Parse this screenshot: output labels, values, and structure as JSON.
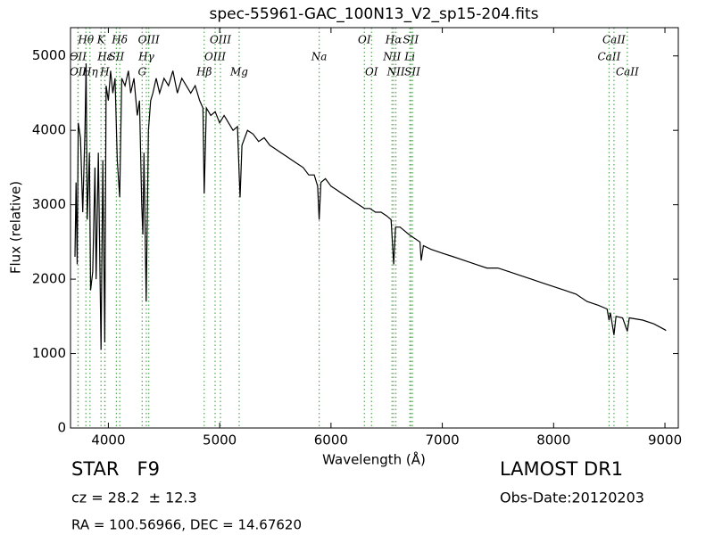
{
  "chart_data": {
    "type": "line",
    "title": "spec-55961-GAC_100N13_V2_sp15-204.fits",
    "x_label": "Wavelength (Å)",
    "y_label": "Flux (relative)",
    "color": "#000000",
    "line_color": "#55aa55",
    "xlim": [
      3660,
      9120
    ],
    "ylim": [
      0,
      5380
    ],
    "xticks": [
      4000,
      5000,
      6000,
      7000,
      8000,
      9000
    ],
    "yticks": [
      0,
      1000,
      2000,
      3000,
      4000,
      5000
    ],
    "x": [
      3700,
      3710,
      3720,
      3730,
      3750,
      3770,
      3790,
      3800,
      3810,
      3830,
      3840,
      3860,
      3880,
      3890,
      3910,
      3934,
      3950,
      3968,
      3980,
      4000,
      4020,
      4040,
      4060,
      4080,
      4102,
      4120,
      4150,
      4180,
      4200,
      4230,
      4260,
      4280,
      4300,
      4310,
      4320,
      4340,
      4360,
      4380,
      4400,
      4430,
      4460,
      4500,
      4540,
      4580,
      4620,
      4660,
      4700,
      4740,
      4780,
      4820,
      4850,
      4861,
      4880,
      4920,
      4960,
      5000,
      5040,
      5080,
      5120,
      5160,
      5175,
      5183,
      5200,
      5250,
      5300,
      5350,
      5400,
      5450,
      5500,
      5550,
      5600,
      5650,
      5700,
      5750,
      5800,
      5850,
      5880,
      5894,
      5910,
      5950,
      6000,
      6050,
      6100,
      6150,
      6200,
      6250,
      6300,
      6350,
      6400,
      6450,
      6500,
      6540,
      6563,
      6580,
      6620,
      6660,
      6700,
      6750,
      6800,
      6810,
      6830,
      6900,
      7000,
      7100,
      7200,
      7300,
      7400,
      7500,
      7600,
      7700,
      7800,
      7900,
      8000,
      8100,
      8200,
      8300,
      8400,
      8480,
      8498,
      8510,
      8542,
      8560,
      8620,
      8662,
      8680,
      8800,
      8900,
      9000,
      9010
    ],
    "values": [
      2300,
      3300,
      2200,
      4100,
      3900,
      2900,
      4000,
      4900,
      2800,
      3700,
      1850,
      2100,
      3500,
      2000,
      3700,
      1050,
      3600,
      1150,
      4600,
      4400,
      4800,
      4500,
      4700,
      3600,
      3100,
      4700,
      4600,
      4800,
      4500,
      4700,
      4200,
      4400,
      3000,
      2600,
      3700,
      1700,
      4000,
      4400,
      4500,
      4700,
      4500,
      4700,
      4600,
      4800,
      4500,
      4700,
      4600,
      4500,
      4600,
      4400,
      4300,
      3150,
      4300,
      4200,
      4250,
      4100,
      4200,
      4100,
      4000,
      4050,
      3400,
      3100,
      3800,
      4000,
      3950,
      3850,
      3900,
      3800,
      3750,
      3700,
      3650,
      3600,
      3550,
      3500,
      3400,
      3400,
      3250,
      2800,
      3300,
      3350,
      3250,
      3200,
      3150,
      3100,
      3050,
      3000,
      2950,
      2950,
      2900,
      2900,
      2850,
      2800,
      2200,
      2700,
      2700,
      2650,
      2600,
      2550,
      2500,
      2250,
      2450,
      2400,
      2350,
      2300,
      2250,
      2200,
      2150,
      2150,
      2100,
      2050,
      2000,
      1950,
      1900,
      1850,
      1800,
      1700,
      1650,
      1600,
      1450,
      1550,
      1250,
      1500,
      1480,
      1300,
      1480,
      1450,
      1400,
      1320,
      1310
    ],
    "spectral_lines": [
      {
        "wavelength": 3727,
        "label": "OII"
      },
      {
        "wavelength": 3729,
        "label": "OII"
      },
      {
        "wavelength": 3798,
        "label": "Hθ"
      },
      {
        "wavelength": 3835,
        "label": "Hη"
      },
      {
        "wavelength": 3934,
        "label": "K"
      },
      {
        "wavelength": 3968,
        "label": "H"
      },
      {
        "wavelength": 3970,
        "label": "Hε"
      },
      {
        "wavelength": 4072,
        "label": "SII"
      },
      {
        "wavelength": 4102,
        "label": "Hδ"
      },
      {
        "wavelength": 4304,
        "label": "G"
      },
      {
        "wavelength": 4341,
        "label": "Hγ"
      },
      {
        "wavelength": 4363,
        "label": "OIII"
      },
      {
        "wavelength": 4861,
        "label": "Hβ"
      },
      {
        "wavelength": 4959,
        "label": "OIII"
      },
      {
        "wavelength": 5007,
        "label": "OIII"
      },
      {
        "wavelength": 5175,
        "label": "Mg"
      },
      {
        "wavelength": 5894,
        "label": "Na"
      },
      {
        "wavelength": 6300,
        "label": "OI"
      },
      {
        "wavelength": 6364,
        "label": "OI"
      },
      {
        "wavelength": 6548,
        "label": "NII"
      },
      {
        "wavelength": 6563,
        "label": "Hα"
      },
      {
        "wavelength": 6583,
        "label": "NII"
      },
      {
        "wavelength": 6708,
        "label": "Li"
      },
      {
        "wavelength": 6717,
        "label": "SII"
      },
      {
        "wavelength": 6731,
        "label": "SII"
      },
      {
        "wavelength": 8498,
        "label": "CaII"
      },
      {
        "wavelength": 8542,
        "label": "CaII"
      },
      {
        "wavelength": 8662,
        "label": "CaII"
      }
    ],
    "info": {
      "object": "STAR   F9",
      "survey": "LAMOST DR1",
      "redshift": "cz = 28.2  ± 12.3",
      "obs_date": "Obs-Date:20120203",
      "coords": "RA = 100.56966, DEC = 14.67620"
    }
  }
}
